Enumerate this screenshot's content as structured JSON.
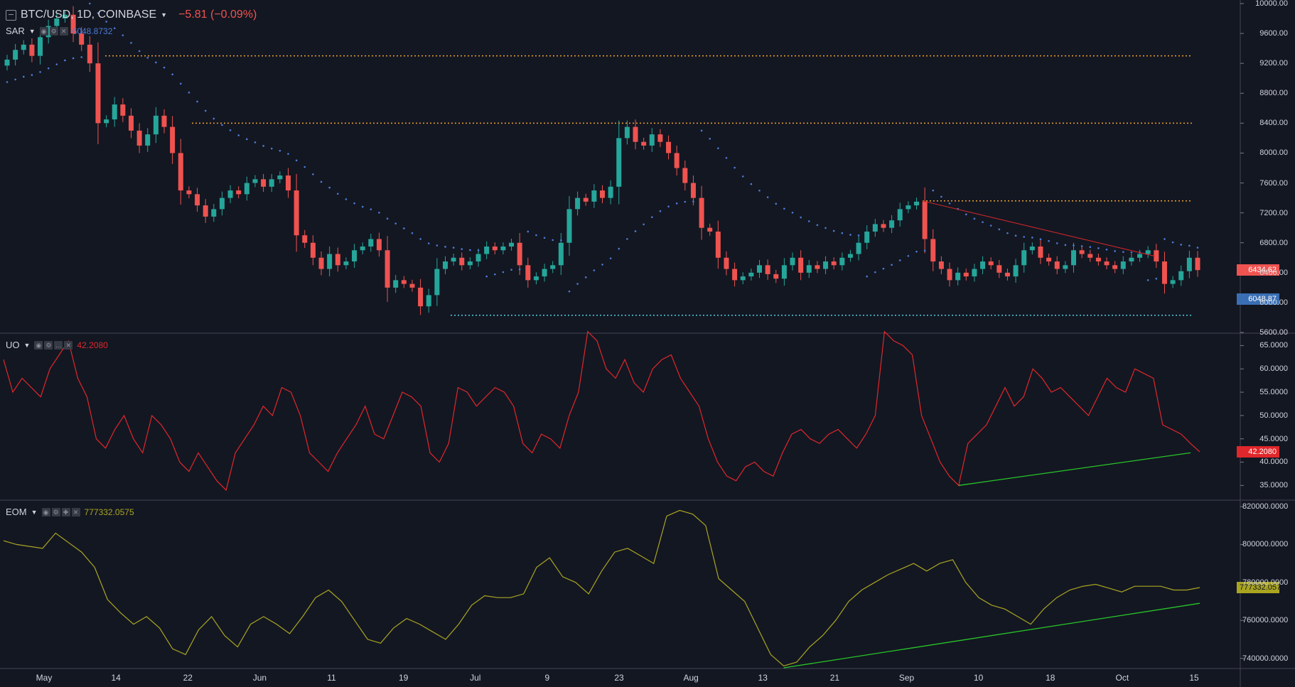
{
  "header": {
    "symbol": "BTC/USD, 1D, COINBASE",
    "change": "−5.81 (−0.09%)",
    "menu_icon": "hamburger-menu-icon"
  },
  "indicators": {
    "sar": {
      "name": "SAR",
      "value": "6048.8732",
      "color": "#4c7bd6"
    },
    "uo": {
      "name": "UO",
      "value": "42.2080",
      "color": "#e0272b"
    },
    "eom": {
      "name": "EOM",
      "value": "777332.0575",
      "color": "#aaa521"
    }
  },
  "colors": {
    "up": "#26a69a",
    "down": "#ef5350",
    "background": "#131722",
    "trend_green": "#28c628",
    "trend_red": "#e0272b",
    "orange_level": "#f0a030",
    "cyan_level": "#4dd0e1"
  },
  "price_badges": {
    "last": "6434.62",
    "sar": "6048.87"
  },
  "uo_badge": "42.2080",
  "eom_badge": "777332.0575",
  "chart_data": [
    {
      "type": "candlestick",
      "title": "BTC/USD, 1D, COINBASE",
      "y_ticks": [
        "10000.00",
        "9600.00",
        "9200.00",
        "8800.00",
        "8400.00",
        "8000.00",
        "7600.00",
        "7200.00",
        "6800.00",
        "6400.00",
        "6000.00",
        "5600.00"
      ],
      "ylim": [
        5600,
        10000
      ],
      "x_labels": [
        "May",
        "14",
        "22",
        "Jun",
        "11",
        "19",
        "Jul",
        "9",
        "23",
        "Aug",
        "13",
        "21",
        "Sep",
        "10",
        "18",
        "Oct",
        "15"
      ],
      "close": [
        9250,
        9380,
        9450,
        9300,
        9550,
        9700,
        9800,
        9850,
        9600,
        9450,
        9200,
        8400,
        8450,
        8650,
        8500,
        8300,
        8100,
        8250,
        8500,
        8350,
        8000,
        7500,
        7450,
        7300,
        7150,
        7250,
        7400,
        7500,
        7450,
        7600,
        7650,
        7550,
        7650,
        7700,
        7500,
        6900,
        6800,
        6600,
        6450,
        6650,
        6500,
        6550,
        6700,
        6750,
        6850,
        6700,
        6200,
        6300,
        6250,
        6200,
        5950,
        6100,
        6450,
        6550,
        6600,
        6500,
        6550,
        6650,
        6750,
        6700,
        6750,
        6800,
        6500,
        6300,
        6350,
        6450,
        6500,
        6800,
        7250,
        7400,
        7350,
        7500,
        7400,
        7550,
        8200,
        8350,
        8150,
        8100,
        8250,
        8150,
        8000,
        7800,
        7600,
        7400,
        7000,
        6950,
        6600,
        6450,
        6300,
        6350,
        6400,
        6500,
        6380,
        6320,
        6500,
        6600,
        6400,
        6500,
        6450,
        6550,
        6500,
        6600,
        6650,
        6800,
        6950,
        7050,
        7000,
        7100,
        7250,
        7300,
        7350,
        6850,
        6550,
        6450,
        6300,
        6400,
        6350,
        6450,
        6550,
        6500,
        6400,
        6350,
        6500,
        6700,
        6750,
        6600,
        6550,
        6450,
        6500,
        6700,
        6650,
        6600,
        6550,
        6500,
        6450,
        6550,
        6600,
        6650,
        6700,
        6550,
        6250,
        6300,
        6420,
        6600,
        6434.62
      ],
      "levels": [
        {
          "price": 9300,
          "style": "dotted",
          "color": "#f0a030"
        },
        {
          "price": 8400,
          "style": "dotted",
          "color": "#f0a030"
        },
        {
          "price": 7360,
          "style": "dotted",
          "color": "#f0a030"
        },
        {
          "price": 5830,
          "style": "dotted",
          "color": "#4dd0e1"
        }
      ],
      "sar_series_name": "SAR",
      "sar_last": 6048.87
    },
    {
      "type": "line",
      "title": "UO",
      "y_ticks": [
        "65.0000",
        "60.0000",
        "55.0000",
        "50.0000",
        "45.0000",
        "40.0000",
        "35.0000"
      ],
      "ylim": [
        32,
        67.5
      ],
      "values": [
        62,
        55,
        58,
        56,
        54,
        60,
        63,
        66,
        58,
        54,
        45,
        43,
        47,
        50,
        45,
        42,
        50,
        48,
        45,
        40,
        38,
        42,
        39,
        36,
        34,
        42,
        45,
        48,
        52,
        50,
        56,
        55,
        50,
        42,
        40,
        38,
        42,
        45,
        48,
        52,
        46,
        45,
        50,
        55,
        54,
        52,
        42,
        40,
        44,
        56,
        55,
        52,
        54,
        56,
        55,
        52,
        44,
        42,
        46,
        45,
        43,
        50,
        55,
        68,
        66,
        60,
        58,
        62,
        57,
        55,
        60,
        62,
        63,
        58,
        55,
        52,
        45,
        40,
        37,
        36,
        39,
        40,
        38,
        37,
        42,
        46,
        47,
        45,
        44,
        46,
        47,
        45,
        43,
        46,
        50,
        68,
        66,
        65,
        63,
        50,
        45,
        40,
        37,
        35,
        44,
        46,
        48,
        52,
        56,
        52,
        54,
        60,
        58,
        55,
        56,
        54,
        52,
        50,
        54,
        58,
        56,
        55,
        60,
        59,
        58,
        48,
        47,
        46,
        44,
        42.208
      ],
      "trendline": {
        "from": {
          "x_index": 103,
          "value": 35
        },
        "to": {
          "x_index": 128,
          "value": 42
        },
        "color": "#28c628"
      },
      "last": 42.208
    },
    {
      "type": "line",
      "title": "EOM",
      "y_ticks": [
        "820000.0000",
        "800000.0000",
        "780000.0000",
        "760000.0000",
        "740000.0000"
      ],
      "ylim": [
        735000,
        823000
      ],
      "values": [
        802000,
        800000,
        799000,
        798000,
        806000,
        801000,
        796000,
        788000,
        771000,
        764000,
        758000,
        762000,
        756000,
        745000,
        742000,
        755000,
        762000,
        752000,
        746000,
        758000,
        762000,
        758000,
        753000,
        762000,
        772000,
        776000,
        770000,
        760000,
        750000,
        748000,
        756000,
        761000,
        758000,
        754000,
        750000,
        758000,
        768000,
        773000,
        772000,
        772000,
        774000,
        788000,
        793000,
        783000,
        780000,
        774000,
        786000,
        796000,
        798000,
        794000,
        790000,
        815000,
        818000,
        816000,
        810000,
        782000,
        776000,
        770000,
        756000,
        742000,
        736000,
        738000,
        746000,
        752000,
        760000,
        770000,
        776000,
        780000,
        784000,
        787000,
        790000,
        786000,
        790000,
        792000,
        780000,
        772000,
        768000,
        766000,
        762000,
        758000,
        766000,
        772000,
        776000,
        778000,
        779000,
        777000,
        775000,
        778000,
        778000,
        778000,
        776000,
        776000,
        777332.0575
      ],
      "trendline": {
        "from": {
          "x_index": 60,
          "value": 735000
        },
        "to": {
          "x_index": 92,
          "value": 769000
        },
        "color": "#28c628"
      },
      "last": 777332.0575
    }
  ]
}
